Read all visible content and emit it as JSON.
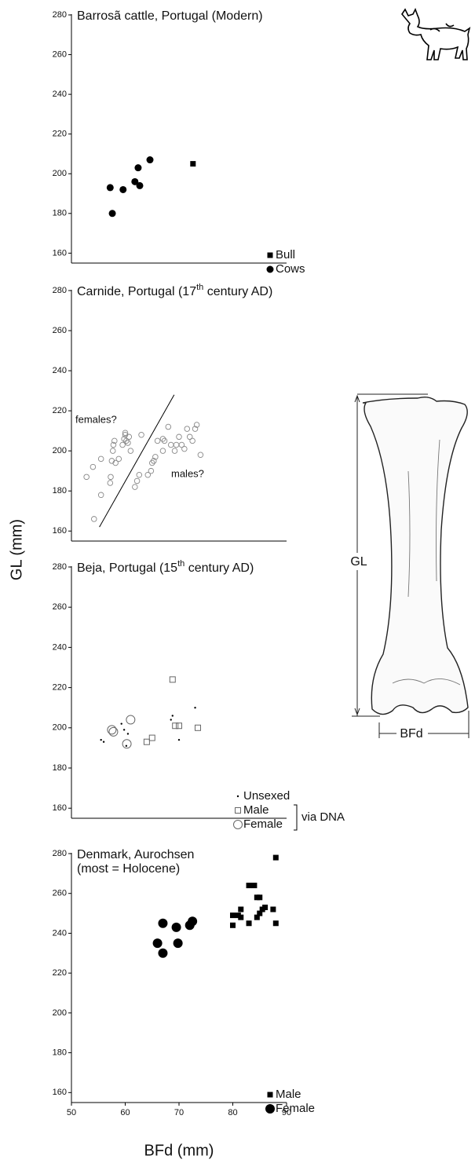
{
  "xlabel": "BFd (mm)",
  "ylabel": "GL (mm)",
  "figure": {
    "labels": [
      "GL",
      "BFd"
    ]
  },
  "chart_data": [
    {
      "type": "scatter",
      "title": "Barrosã cattle, Portugal (Modern)",
      "xlim": [
        50,
        90
      ],
      "ylim": [
        155,
        280
      ],
      "yticks": [
        160,
        180,
        200,
        220,
        240,
        260,
        280
      ],
      "grid": false,
      "legend": "lower right",
      "series": [
        {
          "name": "Bull",
          "color": "#000000",
          "marker": "square",
          "x": [
            72.6
          ],
          "values": [
            205
          ]
        },
        {
          "name": "Cows",
          "color": "#000000",
          "marker": "circle",
          "x": [
            57.2,
            59.6,
            62.4,
            61.8,
            62.7,
            64.6,
            57.6
          ],
          "values": [
            193,
            192,
            203,
            196,
            194,
            207,
            180
          ]
        }
      ]
    },
    {
      "type": "scatter",
      "title": "Carnide, Portugal (17",
      "title_sup": "th",
      "title_end": " century AD)",
      "xlim": [
        50,
        90
      ],
      "ylim": [
        155,
        280
      ],
      "yticks": [
        160,
        180,
        200,
        220,
        240,
        260,
        280
      ],
      "grid": false,
      "annotations": [
        "females?",
        "males?"
      ],
      "divider": {
        "x": [
          55.2,
          69.1
        ],
        "y": [
          162,
          228
        ]
      },
      "series": [
        {
          "name": "Carnide",
          "color": "#888888",
          "marker": "open-circle",
          "x": [
            52.8,
            54,
            55.5,
            55.5,
            54.2,
            57.2,
            57.3,
            57.5,
            57.7,
            57.8,
            58,
            58.2,
            58.8,
            59.5,
            59.8,
            60,
            60,
            60.2,
            60.5,
            60.7,
            61,
            61.8,
            62.2,
            62.6,
            63,
            64.2,
            64.8,
            65,
            65.3,
            65.6,
            66,
            67,
            67.3,
            67,
            68,
            68.5,
            69.2,
            69.5,
            70,
            70.5,
            71,
            71.5,
            72,
            72.5,
            73,
            73.3,
            74
          ],
          "values": [
            187,
            192,
            196,
            178,
            166,
            184,
            187,
            195,
            200,
            203,
            205,
            194,
            196,
            203,
            206,
            208,
            209,
            205,
            204,
            207,
            200,
            182,
            185,
            188,
            208,
            188,
            190,
            194,
            195,
            197,
            205,
            206,
            205,
            200,
            212,
            203,
            200,
            203,
            207,
            203,
            201,
            211,
            207,
            205,
            211,
            213,
            198
          ]
        }
      ]
    },
    {
      "type": "scatter",
      "title": "Beja, Portugal (15",
      "title_sup": "th",
      "title_end": " century AD)",
      "xlim": [
        50,
        90
      ],
      "ylim": [
        155,
        280
      ],
      "yticks": [
        160,
        180,
        200,
        220,
        240,
        260,
        280
      ],
      "grid": false,
      "legend": "lower right",
      "legend_note": "via DNA",
      "series": [
        {
          "name": "Unsexed",
          "color": "#000000",
          "marker": "dot",
          "x": [
            55.5,
            56,
            59.3,
            59.8,
            60.2,
            60.5,
            68.5,
            68.8,
            70,
            73
          ],
          "values": [
            194,
            193,
            202,
            199,
            191,
            197,
            204,
            206,
            194,
            210
          ]
        },
        {
          "name": "Male",
          "color": "#666666",
          "marker": "open-square",
          "x": [
            68.8,
            64,
            65,
            69.3,
            70,
            73.5
          ],
          "values": [
            224,
            193,
            195,
            201,
            201,
            200
          ]
        },
        {
          "name": "Female",
          "color": "#666666",
          "marker": "open-circle-large",
          "x": [
            57.5,
            57.8,
            60.3,
            61
          ],
          "values": [
            199,
            198,
            192,
            204
          ]
        }
      ]
    },
    {
      "type": "scatter",
      "title": "Denmark, Aurochsen",
      "subtitle": "(most = Holocene)",
      "xlim": [
        50,
        90
      ],
      "ylim": [
        155,
        280
      ],
      "xticks": [
        50,
        60,
        70,
        80,
        90
      ],
      "yticks": [
        160,
        180,
        200,
        220,
        240,
        260,
        280
      ],
      "grid": false,
      "legend": "lower right",
      "series": [
        {
          "name": "Male",
          "color": "#000000",
          "marker": "square",
          "x": [
            88,
            83,
            84,
            84.5,
            85,
            81.5,
            85.5,
            86,
            87.5,
            80,
            81,
            81.5,
            83,
            84.5,
            85,
            80,
            88
          ],
          "values": [
            278,
            264,
            264,
            258,
            258,
            252,
            252,
            253,
            252,
            249,
            249,
            248,
            245,
            248,
            250,
            244,
            245
          ]
        },
        {
          "name": "Female",
          "color": "#000000",
          "marker": "circle-large",
          "x": [
            67,
            69.5,
            72,
            72.5,
            66,
            69.8,
            67
          ],
          "values": [
            245,
            243,
            244,
            246,
            235,
            235,
            230
          ]
        }
      ]
    }
  ]
}
